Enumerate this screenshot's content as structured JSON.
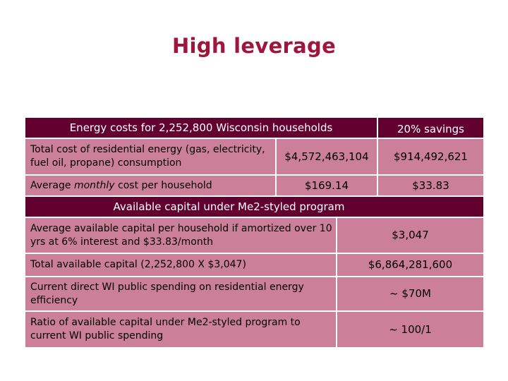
{
  "title": "High leverage",
  "table1": {
    "header": {
      "left": "Energy costs for 2,252,800 Wisconsin households",
      "right": "20% savings"
    },
    "rows": [
      {
        "label": "Total cost of residential energy (gas, electricity, fuel oil, propane) consumption",
        "value": "$4,572,463,104",
        "savings": "$914,492,621"
      },
      {
        "label_pre": "Average ",
        "label_em": "monthly",
        "label_post": " cost per household",
        "value": "$169.14",
        "savings": "$33.83"
      }
    ]
  },
  "table2": {
    "header": "Available capital under Me2-styled program",
    "rows": [
      {
        "label": "Average available capital per household if amortized over 10 yrs at 6% interest and $33.83/month",
        "value": "$3,047"
      },
      {
        "label": "Total available capital (2,252,800 X $3,047)",
        "value": "$6,864,281,600"
      },
      {
        "label": "Current direct WI public spending on residential energy efficiency",
        "value": "~ $70M"
      },
      {
        "label": "Ratio of available capital under Me2-styled program to current WI public spending",
        "value": "~ 100/1"
      }
    ]
  },
  "colors": {
    "title": "#a0153e",
    "header_band": "#62012f",
    "cell": "#cc7f98"
  }
}
